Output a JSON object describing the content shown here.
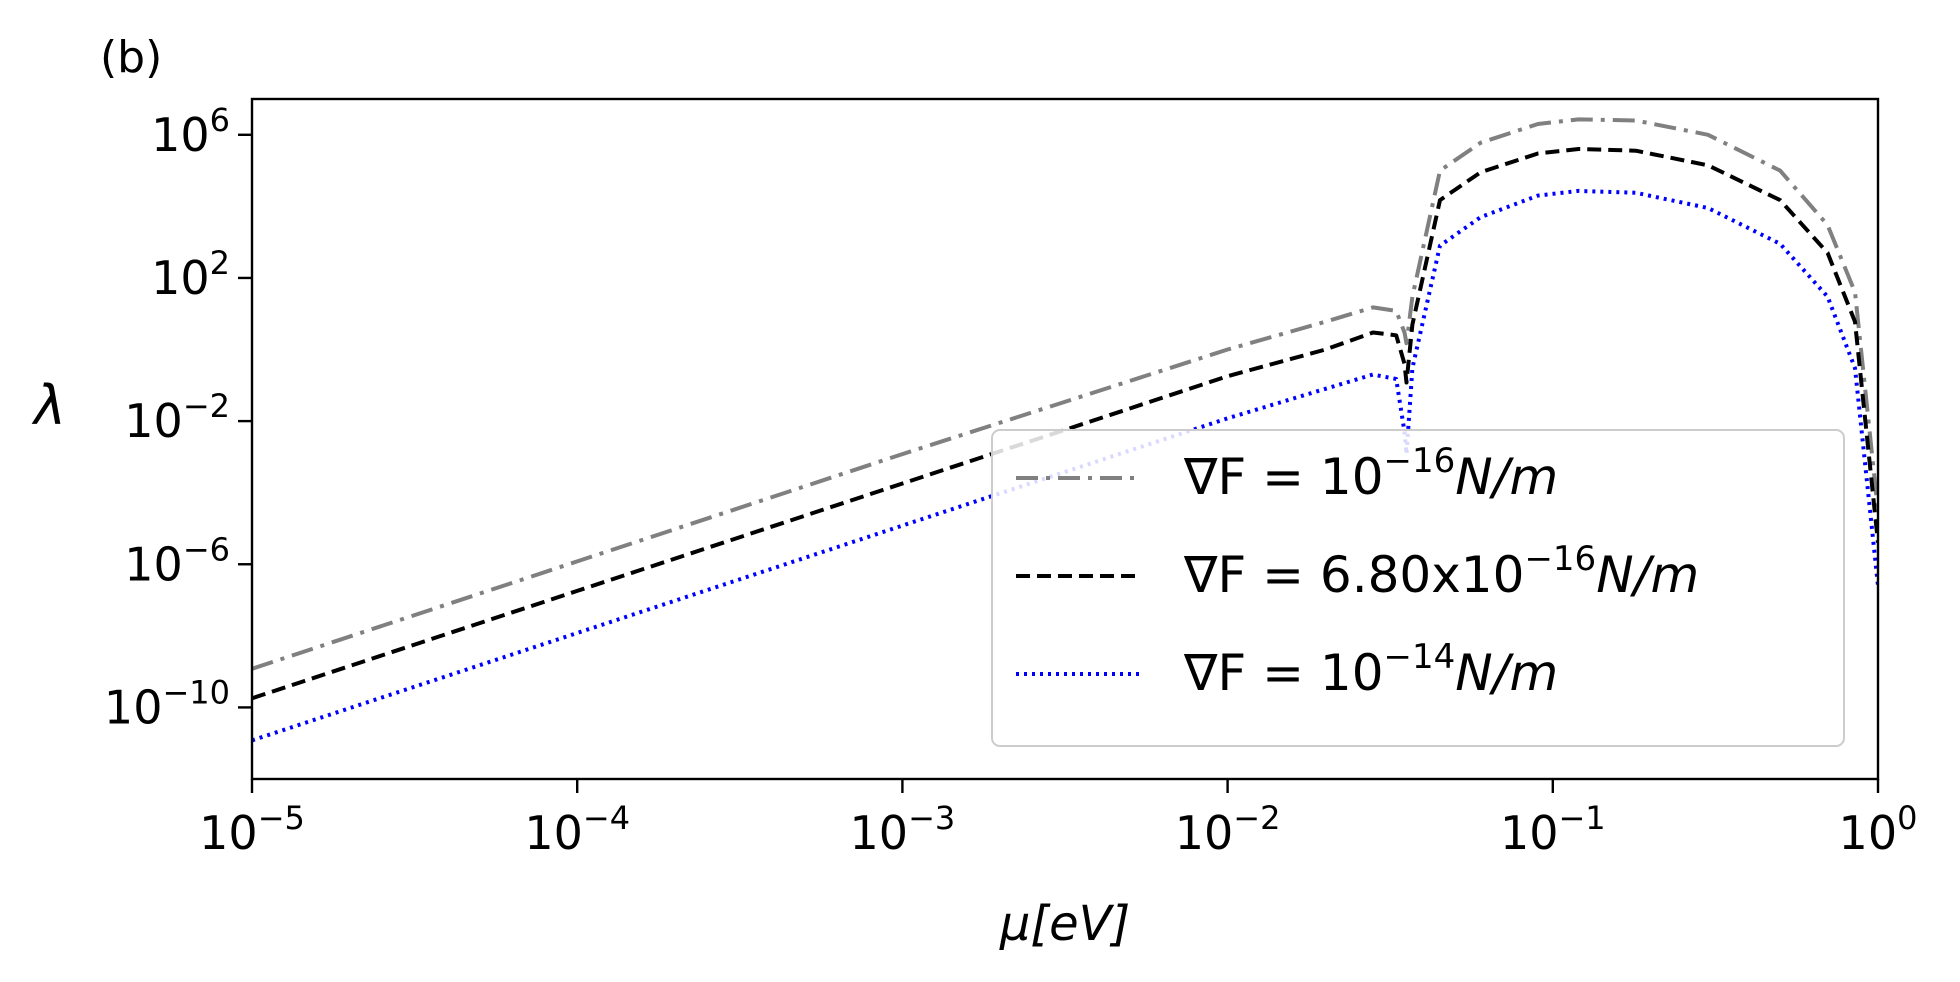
{
  "chart_data": {
    "type": "line",
    "panel_label": "(b)",
    "xlabel": "μ[eV]",
    "ylabel": "λ",
    "xscale": "log",
    "yscale": "log",
    "xlim": [
      1e-05,
      1
    ],
    "ylim": [
      1e-12,
      10000000.0
    ],
    "x_ticks": [
      {
        "base": "10",
        "exp": "−5",
        "value": 1e-05
      },
      {
        "base": "10",
        "exp": "−4",
        "value": 0.0001
      },
      {
        "base": "10",
        "exp": "−3",
        "value": 0.001
      },
      {
        "base": "10",
        "exp": "−2",
        "value": 0.01
      },
      {
        "base": "10",
        "exp": "−1",
        "value": 0.1
      },
      {
        "base": "10",
        "exp": "0",
        "value": 1
      }
    ],
    "y_ticks": [
      {
        "base": "10",
        "exp": "6",
        "value": 1000000.0
      },
      {
        "base": "10",
        "exp": "2",
        "value": 100.0
      },
      {
        "base": "10",
        "exp": "−2",
        "value": 0.01
      },
      {
        "base": "10",
        "exp": "−6",
        "value": 1e-06
      },
      {
        "base": "10",
        "exp": "−10",
        "value": 1e-10
      }
    ],
    "legend_position": "lower-right",
    "series": [
      {
        "id": "s1",
        "name_prefix": "∇F = 10",
        "name_exp": "−16",
        "name_suffix": "N/m",
        "color": "#808080",
        "style": "dashdot",
        "x": [
          1e-05,
          0.0001,
          0.001,
          0.01,
          0.02,
          0.028,
          0.033,
          0.035,
          0.0355,
          0.037,
          0.045,
          0.06,
          0.09,
          0.12,
          0.18,
          0.3,
          0.5,
          0.7,
          0.85,
          1.0
        ],
        "y": [
          1.2e-09,
          1.2e-06,
          0.0012,
          1.0,
          6.0,
          15,
          12,
          3,
          1.5,
          30,
          100000.0,
          600000.0,
          2000000.0,
          2700000.0,
          2500000.0,
          1000000.0,
          100000.0,
          3000.0,
          40,
          3e-05
        ]
      },
      {
        "id": "s2",
        "name_prefix": "∇F = 6.80x10",
        "name_exp": "−16",
        "name_suffix": "N/m",
        "color": "#000000",
        "style": "dashed",
        "x": [
          1e-05,
          0.0001,
          0.001,
          0.01,
          0.02,
          0.028,
          0.033,
          0.035,
          0.0355,
          0.037,
          0.045,
          0.06,
          0.09,
          0.12,
          0.18,
          0.3,
          0.5,
          0.7,
          0.85,
          1.0
        ],
        "y": [
          1.8e-10,
          1.8e-07,
          0.00018,
          0.18,
          1.0,
          3.0,
          2.5,
          0.4,
          0.12,
          5,
          15000.0,
          90000.0,
          300000.0,
          400000.0,
          360000.0,
          140000.0,
          15000.0,
          500,
          6,
          4e-06
        ]
      },
      {
        "id": "s3",
        "name_prefix": "∇F = 10",
        "name_exp": "−14",
        "name_suffix": "N/m",
        "color": "#0000ff",
        "style": "dotted",
        "x": [
          1e-05,
          0.0001,
          0.001,
          0.01,
          0.02,
          0.028,
          0.033,
          0.035,
          0.0355,
          0.037,
          0.045,
          0.06,
          0.09,
          0.12,
          0.18,
          0.3,
          0.5,
          0.7,
          0.85,
          1.0
        ],
        "y": [
          1.2e-11,
          1.2e-08,
          1.2e-05,
          0.012,
          0.08,
          0.2,
          0.15,
          0.005,
          0.0012,
          0.3,
          800,
          5000.0,
          20000.0,
          27000.0,
          24000.0,
          9000.0,
          900,
          30,
          0.3,
          2.5e-07
        ]
      }
    ]
  }
}
